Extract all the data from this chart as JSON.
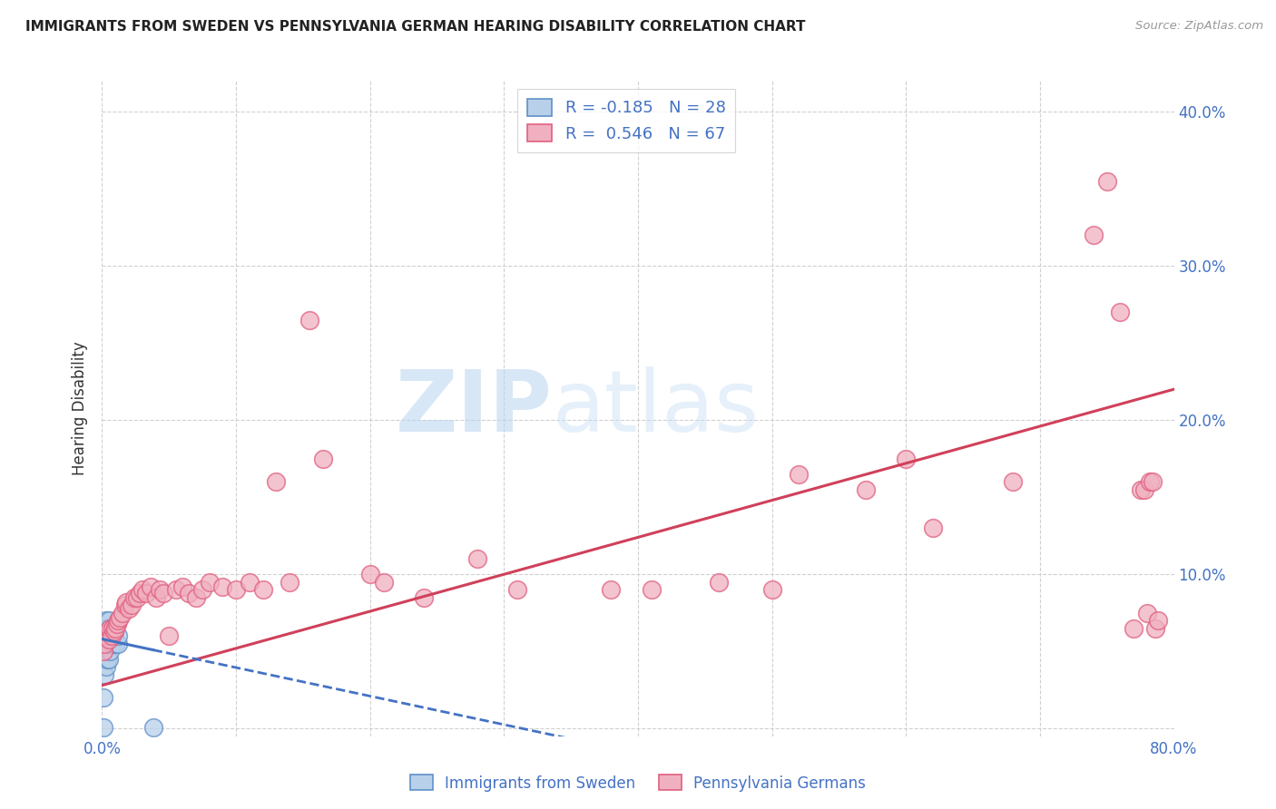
{
  "title": "IMMIGRANTS FROM SWEDEN VS PENNSYLVANIA GERMAN HEARING DISABILITY CORRELATION CHART",
  "source": "Source: ZipAtlas.com",
  "xlabel_bottom": [
    "Immigrants from Sweden",
    "Pennsylvania Germans"
  ],
  "ylabel": "Hearing Disability",
  "xlim": [
    0.0,
    0.8
  ],
  "ylim": [
    -0.005,
    0.42
  ],
  "xticks": [
    0.0,
    0.1,
    0.2,
    0.3,
    0.4,
    0.5,
    0.6,
    0.7,
    0.8
  ],
  "yticks": [
    0.0,
    0.1,
    0.2,
    0.3,
    0.4
  ],
  "ytick_labels_left": [
    "",
    "",
    "",
    "",
    ""
  ],
  "ytick_labels_right": [
    "",
    "10.0%",
    "20.0%",
    "30.0%",
    "40.0%"
  ],
  "xtick_labels": [
    "0.0%",
    "",
    "",
    "",
    "",
    "",
    "",
    "",
    "80.0%"
  ],
  "grid_color": "#d0d0d0",
  "background_color": "#ffffff",
  "sweden_fill_color": "#b8d0ea",
  "sweden_edge_color": "#6090c8",
  "penn_fill_color": "#f0b0c0",
  "penn_edge_color": "#e06080",
  "sweden_line_color": "#4472c4",
  "penn_line_color": "#d0405a",
  "legend_sweden_R": -0.185,
  "legend_sweden_N": 28,
  "legend_penn_R": 0.546,
  "legend_penn_N": 67,
  "watermark_zip": "ZIP",
  "watermark_atlas": "atlas",
  "title_fontsize": 11,
  "label_color": "#4472c4",
  "sweden_intercept": 0.058,
  "sweden_slope": -0.185,
  "penn_intercept": 0.028,
  "penn_slope": 0.24,
  "sweden_points_x": [
    0.001,
    0.001,
    0.002,
    0.002,
    0.002,
    0.003,
    0.003,
    0.003,
    0.003,
    0.004,
    0.004,
    0.004,
    0.005,
    0.005,
    0.005,
    0.005,
    0.006,
    0.006,
    0.006,
    0.007,
    0.007,
    0.008,
    0.008,
    0.009,
    0.01,
    0.012,
    0.012,
    0.038
  ],
  "sweden_points_y": [
    0.001,
    0.02,
    0.035,
    0.055,
    0.065,
    0.04,
    0.055,
    0.06,
    0.07,
    0.045,
    0.06,
    0.065,
    0.045,
    0.055,
    0.06,
    0.07,
    0.05,
    0.06,
    0.065,
    0.055,
    0.06,
    0.055,
    0.065,
    0.06,
    0.055,
    0.055,
    0.06,
    0.001
  ],
  "penn_points_x": [
    0.001,
    0.002,
    0.003,
    0.004,
    0.005,
    0.006,
    0.007,
    0.008,
    0.009,
    0.01,
    0.011,
    0.012,
    0.013,
    0.015,
    0.017,
    0.018,
    0.02,
    0.022,
    0.024,
    0.026,
    0.028,
    0.03,
    0.033,
    0.036,
    0.04,
    0.043,
    0.046,
    0.05,
    0.055,
    0.06,
    0.065,
    0.07,
    0.075,
    0.08,
    0.09,
    0.1,
    0.11,
    0.12,
    0.13,
    0.14,
    0.155,
    0.165,
    0.2,
    0.21,
    0.24,
    0.28,
    0.31,
    0.38,
    0.41,
    0.46,
    0.5,
    0.52,
    0.57,
    0.6,
    0.62,
    0.68,
    0.74,
    0.75,
    0.76,
    0.77,
    0.775,
    0.778,
    0.78,
    0.782,
    0.784,
    0.786,
    0.788
  ],
  "penn_points_y": [
    0.05,
    0.055,
    0.06,
    0.062,
    0.058,
    0.065,
    0.06,
    0.065,
    0.063,
    0.065,
    0.068,
    0.07,
    0.072,
    0.075,
    0.08,
    0.082,
    0.078,
    0.08,
    0.085,
    0.085,
    0.088,
    0.09,
    0.088,
    0.092,
    0.085,
    0.09,
    0.088,
    0.06,
    0.09,
    0.092,
    0.088,
    0.085,
    0.09,
    0.095,
    0.092,
    0.09,
    0.095,
    0.09,
    0.16,
    0.095,
    0.265,
    0.175,
    0.1,
    0.095,
    0.085,
    0.11,
    0.09,
    0.09,
    0.09,
    0.095,
    0.09,
    0.165,
    0.155,
    0.175,
    0.13,
    0.16,
    0.32,
    0.355,
    0.27,
    0.065,
    0.155,
    0.155,
    0.075,
    0.16,
    0.16,
    0.065,
    0.07
  ]
}
